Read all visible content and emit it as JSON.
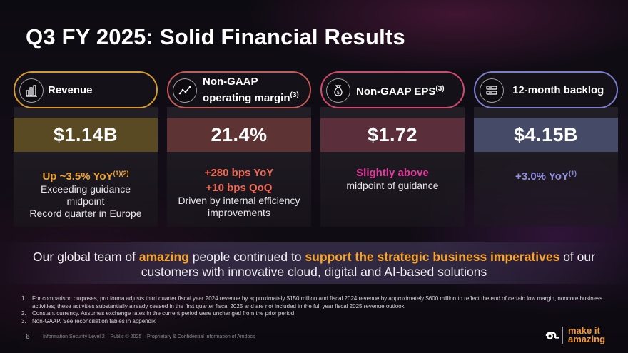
{
  "title": "Q3 FY 2025: Solid Financial Results",
  "cards": [
    {
      "label": "Revenue",
      "sup": "",
      "value": "$1.14B",
      "border": "#d79a2c",
      "value_bg": "#5a4a23",
      "icon": "revenue-chart-icon"
    },
    {
      "label_line1": "Non-GAAP",
      "label_line2": "operating margin",
      "sup": "(3)",
      "value": "21.4%",
      "border": "#c25a5a",
      "value_bg": "#5d3333",
      "icon": "trend-line-icon"
    },
    {
      "label": "Non-GAAP EPS",
      "sup": "(3)",
      "value": "$1.72",
      "border": "#d2486c",
      "value_bg": "#5b2e3b",
      "icon": "money-bag-icon"
    },
    {
      "label": "12-month backlog",
      "sup": "",
      "value": "$4.15B",
      "border": "#7b7fcb",
      "value_bg": "#454a66",
      "icon": "backlog-list-icon"
    }
  ],
  "details": {
    "revenue": {
      "headline": "Up ~3.5% YoY",
      "headline_sup": "(1)(2)",
      "line1": "Exceeding guidance",
      "line2": "midpoint",
      "line3": "Record quarter in Europe",
      "color": "#f0a431"
    },
    "margin": {
      "headline1": "+280 bps YoY",
      "headline2": "+10 bps QoQ",
      "line1": "Driven by internal efficiency",
      "line2": "improvements",
      "color": "#ef6a55"
    },
    "eps": {
      "headline": "Slightly above",
      "line1": "midpoint of guidance",
      "color": "#e3399a"
    },
    "backlog": {
      "headline": "+3.0% YoY",
      "headline_sup": "(1)",
      "color": "#8f8fe0"
    }
  },
  "banner": {
    "p1": "Our global team of ",
    "a1": "amazing",
    "p2": " people continued to ",
    "a2": "support the strategic business imperatives",
    "p3": " of our customers with innovative cloud, digital and AI-based solutions"
  },
  "footnotes": [
    {
      "n": "1.",
      "text": "For comparison purposes, pro forma adjusts third quarter fiscal year 2024 revenue by approximately $150 million and fiscal 2024 revenue by approximately $600 million to reflect the end of certain low margin, noncore business activities; these activities substantially already ceased in the first quarter fiscal 2025 and are not included in the full year fiscal 2025 revenue outlook"
    },
    {
      "n": "2.",
      "text": "Constant currency. Assumes exchange rates in the current period were unchanged from the prior period"
    },
    {
      "n": "3.",
      "text": "Non-GAAP. See reconciliation tables in appendix"
    }
  ],
  "page_number": "6",
  "confidential": "Information Security Level 2 – Public © 2025 – Proprietary & Confidential Information of Amdocs",
  "logo": {
    "line1": "make it",
    "line2": "amazing"
  }
}
